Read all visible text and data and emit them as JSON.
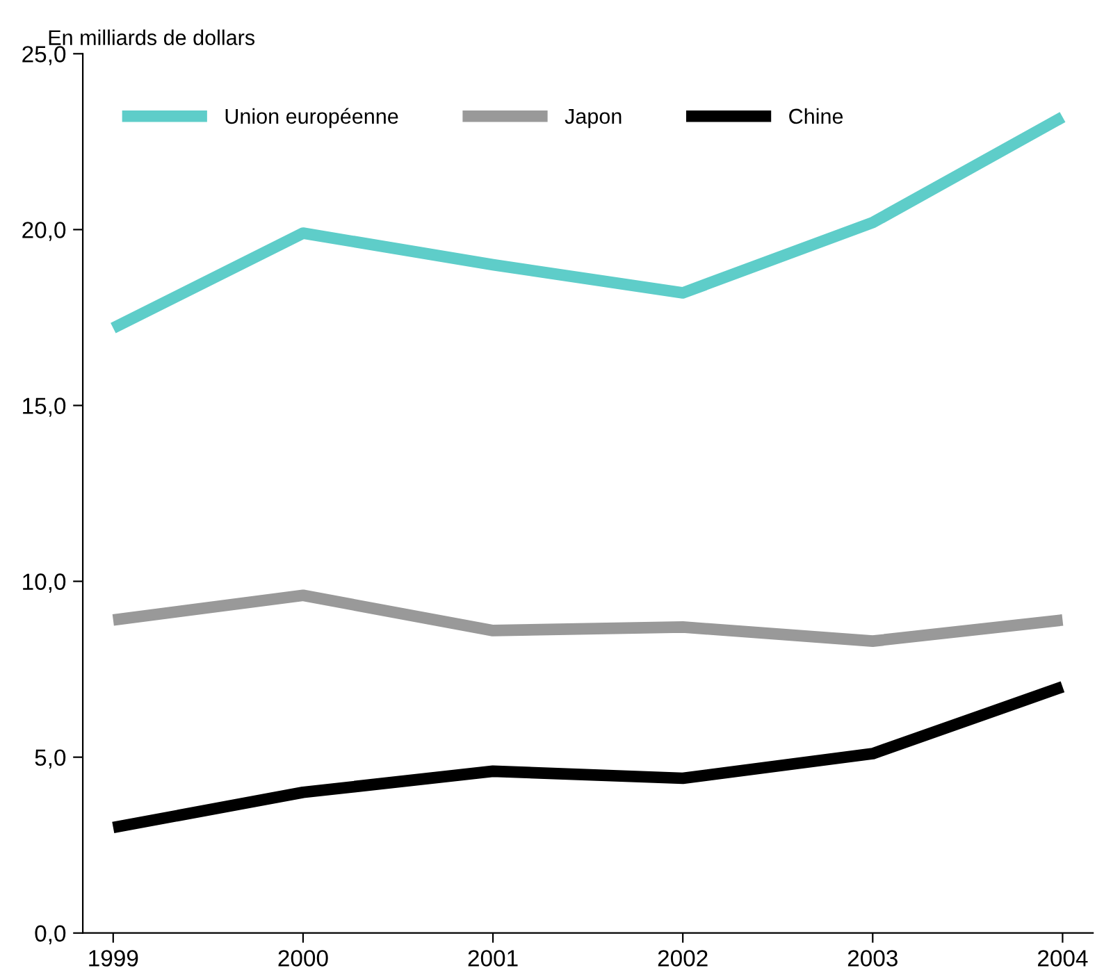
{
  "chart_data": {
    "type": "line",
    "ylabel": "En milliards de dollars",
    "categories": [
      "1999",
      "2000",
      "2001",
      "2002",
      "2003",
      "2004"
    ],
    "series": [
      {
        "name": "Union européenne",
        "color": "#5ecdc9",
        "values": [
          17.2,
          19.9,
          19.0,
          18.2,
          20.2,
          23.2
        ]
      },
      {
        "name": "Japon",
        "color": "#999999",
        "values": [
          8.9,
          9.6,
          8.6,
          8.7,
          8.3,
          8.9
        ]
      },
      {
        "name": "Chine",
        "color": "#000000",
        "values": [
          3.0,
          4.0,
          4.6,
          4.4,
          5.1,
          7.0
        ]
      }
    ],
    "ylim": [
      0,
      25
    ],
    "yticks": [
      {
        "value": 0,
        "label": "0,0"
      },
      {
        "value": 5,
        "label": "5,0"
      },
      {
        "value": 10,
        "label": "10,0"
      },
      {
        "value": 15,
        "label": "15,0"
      },
      {
        "value": 20,
        "label": "20,0"
      },
      {
        "value": 25,
        "label": "25,0"
      }
    ],
    "grid": false,
    "legend": "top left",
    "marker": "none",
    "line_style": "solid"
  }
}
